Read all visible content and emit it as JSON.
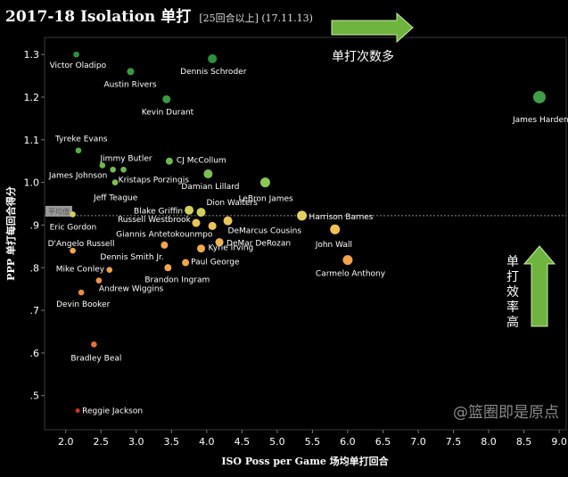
{
  "chart_data": {
    "type": "scatter",
    "title": "2017-18 Isolation 单打",
    "subtitle": "[25回合以上] (17.11.13)",
    "xlabel": "ISO Poss per Game 场均单打回合",
    "ylabel": "PPP 单打每回合得分",
    "xlim": [
      1.7,
      9.1
    ],
    "ylim": [
      0.42,
      1.34
    ],
    "x_ticks": [
      "2.0",
      "2.5",
      "3.0",
      "3.5",
      "4.0",
      "4.5",
      "5.0",
      "5.5",
      "6.0",
      "6.5",
      "7.0",
      "7.5",
      "8.0",
      "8.5",
      "9.0"
    ],
    "y_ticks": [
      "1.3",
      "1.2",
      "1.1",
      "1.0",
      ".9",
      ".8",
      ".7",
      ".6",
      ".5"
    ],
    "reference_line": {
      "y": 0.922,
      "label": "平均值"
    },
    "annotations": {
      "x_arrow": "单打次数多",
      "y_arrow": "单打效率高"
    },
    "watermark": "@篮圈即是原点",
    "grid": false,
    "points": [
      {
        "name": "Victor Oladipo",
        "x": 2.15,
        "y": 1.3,
        "color": "#2f8f3f"
      },
      {
        "name": "Dennis Schroder",
        "x": 4.08,
        "y": 1.29,
        "color": "#2f8f3f"
      },
      {
        "name": "Austin Rivers",
        "x": 2.92,
        "y": 1.26,
        "color": "#3a9a44"
      },
      {
        "name": "Kevin Durant",
        "x": 3.43,
        "y": 1.195,
        "color": "#3a9a44"
      },
      {
        "name": "James Harden",
        "x": 8.72,
        "y": 1.2,
        "color": "#3f9c47"
      },
      {
        "name": "Tyreke Evans",
        "x": 2.18,
        "y": 1.075,
        "color": "#5aad4a"
      },
      {
        "name": "Jimmy Butler",
        "x": 2.82,
        "y": 1.03,
        "color": "#6fb84f"
      },
      {
        "name": "CJ McCollum",
        "x": 3.47,
        "y": 1.05,
        "color": "#6fb84f"
      },
      {
        "name": "James Johnson",
        "x": 2.52,
        "y": 1.04,
        "color": "#6fb84f"
      },
      {
        "name": "Kristaps Porzingis",
        "x": 2.67,
        "y": 1.03,
        "color": "#76bb53"
      },
      {
        "name": "Damian Lillard",
        "x": 4.02,
        "y": 1.02,
        "color": "#7cc055"
      },
      {
        "name": "LeBron James",
        "x": 4.83,
        "y": 1.0,
        "color": "#8cc657"
      },
      {
        "name": "Jeff Teague",
        "x": 2.7,
        "y": 1.0,
        "color": "#7cc055"
      },
      {
        "name": "Dion Waiters",
        "x": 3.92,
        "y": 0.93,
        "color": "#cfd060"
      },
      {
        "name": "Blake Griffin",
        "x": 3.75,
        "y": 0.935,
        "color": "#cfd060"
      },
      {
        "name": "Eric Gordon",
        "x": 2.1,
        "y": 0.925,
        "color": "#cfcf62"
      },
      {
        "name": "Harrison Barnes",
        "x": 5.35,
        "y": 0.922,
        "color": "#e2cf5e"
      },
      {
        "name": "Russell Westbrook",
        "x": 3.85,
        "y": 0.905,
        "color": "#e8c55a"
      },
      {
        "name": "DeMarcus Cousins",
        "x": 4.3,
        "y": 0.91,
        "color": "#e8c55a"
      },
      {
        "name": "Giannis Antetokounmpo",
        "x": 4.08,
        "y": 0.898,
        "color": "#e8c55a"
      },
      {
        "name": "John Wall",
        "x": 5.82,
        "y": 0.89,
        "color": "#f0c157"
      },
      {
        "name": "DeMar DeRozan",
        "x": 4.18,
        "y": 0.86,
        "color": "#f0b552"
      },
      {
        "name": "D'Angelo Russell",
        "x": 2.1,
        "y": 0.84,
        "color": "#f0a64c"
      },
      {
        "name": "Dennis Smith Jr.",
        "x": 3.4,
        "y": 0.853,
        "color": "#f0ab4e"
      },
      {
        "name": "Kyrie Irving",
        "x": 3.92,
        "y": 0.845,
        "color": "#f0ab4e"
      },
      {
        "name": "Carmelo Anthony",
        "x": 6.0,
        "y": 0.818,
        "color": "#f2a24a"
      },
      {
        "name": "Paul George",
        "x": 3.7,
        "y": 0.812,
        "color": "#f0a64c"
      },
      {
        "name": "Brandon Ingram",
        "x": 3.45,
        "y": 0.8,
        "color": "#f0a64c"
      },
      {
        "name": "Mike Conley",
        "x": 2.62,
        "y": 0.795,
        "color": "#f0a04a"
      },
      {
        "name": "Andrew Wiggins",
        "x": 2.47,
        "y": 0.77,
        "color": "#ee9646"
      },
      {
        "name": "Devin Booker",
        "x": 2.22,
        "y": 0.742,
        "color": "#ea8a43"
      },
      {
        "name": "Bradley Beal",
        "x": 2.4,
        "y": 0.62,
        "color": "#e2703c"
      },
      {
        "name": "Reggie Jackson",
        "x": 2.17,
        "y": 0.465,
        "color": "#d0302a"
      }
    ]
  }
}
